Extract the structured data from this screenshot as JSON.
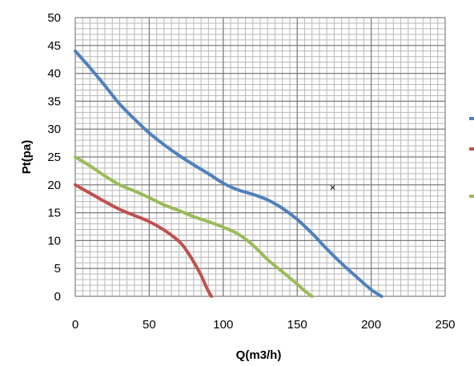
{
  "chart_data": {
    "type": "line",
    "title": "",
    "xlabel": "Q(m3/h)",
    "ylabel": "Pt(pa)",
    "xlim": [
      0,
      250
    ],
    "ylim": [
      0,
      50
    ],
    "x_ticks": [
      "0",
      "50",
      "100",
      "150",
      "200",
      "250"
    ],
    "y_ticks": [
      "0",
      "5",
      "10",
      "15",
      "20",
      "25",
      "30",
      "35",
      "40",
      "45",
      "50"
    ],
    "grid": true,
    "minor_grid": true,
    "legend": "right",
    "series": [
      {
        "color": "#4f81bd",
        "x": [
          0,
          10,
          20,
          30,
          40,
          50,
          60,
          70,
          80,
          90,
          100,
          110,
          120,
          130,
          140,
          150,
          160,
          170,
          180,
          190,
          200,
          207
        ],
        "y": [
          44,
          41,
          37.8,
          34.5,
          31.8,
          29.3,
          27.2,
          25.3,
          23.6,
          22,
          20.3,
          19.1,
          18.3,
          17.3,
          15.8,
          13.8,
          11.3,
          8.5,
          5.9,
          3.5,
          1.2,
          0
        ]
      },
      {
        "color": "#c0504d",
        "x": [
          0,
          10,
          20,
          30,
          40,
          50,
          60,
          70,
          75,
          80,
          85,
          88,
          90,
          92
        ],
        "y": [
          20,
          18.5,
          17,
          15.6,
          14.5,
          13.4,
          11.9,
          9.9,
          8.3,
          6.2,
          3.8,
          2,
          0.9,
          0
        ]
      },
      {
        "color": "#9bbb59",
        "x": [
          0,
          10,
          20,
          30,
          40,
          50,
          60,
          70,
          80,
          90,
          100,
          110,
          120,
          130,
          140,
          150,
          155,
          160
        ],
        "y": [
          25,
          23.4,
          21.6,
          20,
          18.9,
          17.7,
          16.4,
          15.4,
          14.3,
          13.4,
          12.4,
          11.2,
          9.2,
          6.6,
          4.4,
          2.2,
          1,
          0
        ]
      }
    ],
    "annotation": {
      "text": "×",
      "x": 174,
      "y": 19.5
    }
  }
}
